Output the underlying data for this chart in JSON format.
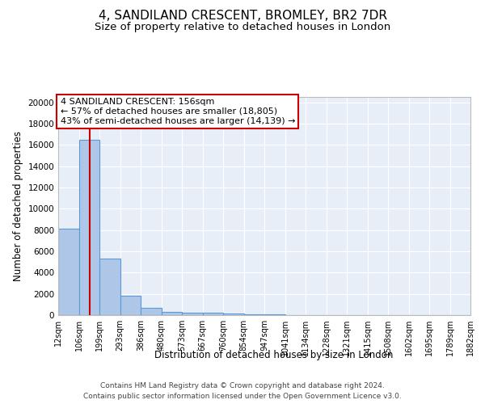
{
  "title": "4, SANDILAND CRESCENT, BROMLEY, BR2 7DR",
  "subtitle": "Size of property relative to detached houses in London",
  "xlabel": "Distribution of detached houses by size in London",
  "ylabel": "Number of detached properties",
  "bin_edges": [
    12,
    106,
    199,
    293,
    386,
    480,
    573,
    667,
    760,
    854,
    947,
    1041,
    1134,
    1228,
    1321,
    1415,
    1508,
    1602,
    1695,
    1789,
    1882
  ],
  "bar_heights": [
    8100,
    16500,
    5300,
    1850,
    700,
    300,
    200,
    200,
    150,
    100,
    50,
    30,
    20,
    15,
    10,
    5,
    5,
    5,
    5,
    5
  ],
  "bar_color": "#aec6e8",
  "bar_edge_color": "#5b9bd5",
  "bg_color": "#e8eef8",
  "grid_color": "#ffffff",
  "red_line_x": 156,
  "annotation_title": "4 SANDILAND CRESCENT: 156sqm",
  "annotation_line1": "← 57% of detached houses are smaller (18,805)",
  "annotation_line2": "43% of semi-detached houses are larger (14,139) →",
  "annotation_box_color": "#ffffff",
  "annotation_box_edge": "#cc0000",
  "red_line_color": "#cc0000",
  "ylim": [
    0,
    20500
  ],
  "yticks": [
    0,
    2000,
    4000,
    6000,
    8000,
    10000,
    12000,
    14000,
    16000,
    18000,
    20000
  ],
  "footer1": "Contains HM Land Registry data © Crown copyright and database right 2024.",
  "footer2": "Contains public sector information licensed under the Open Government Licence v3.0.",
  "title_fontsize": 11,
  "subtitle_fontsize": 9.5,
  "tick_label_fontsize": 7,
  "ylabel_fontsize": 8.5,
  "xlabel_fontsize": 8.5,
  "annotation_fontsize": 8,
  "footer_fontsize": 6.5
}
